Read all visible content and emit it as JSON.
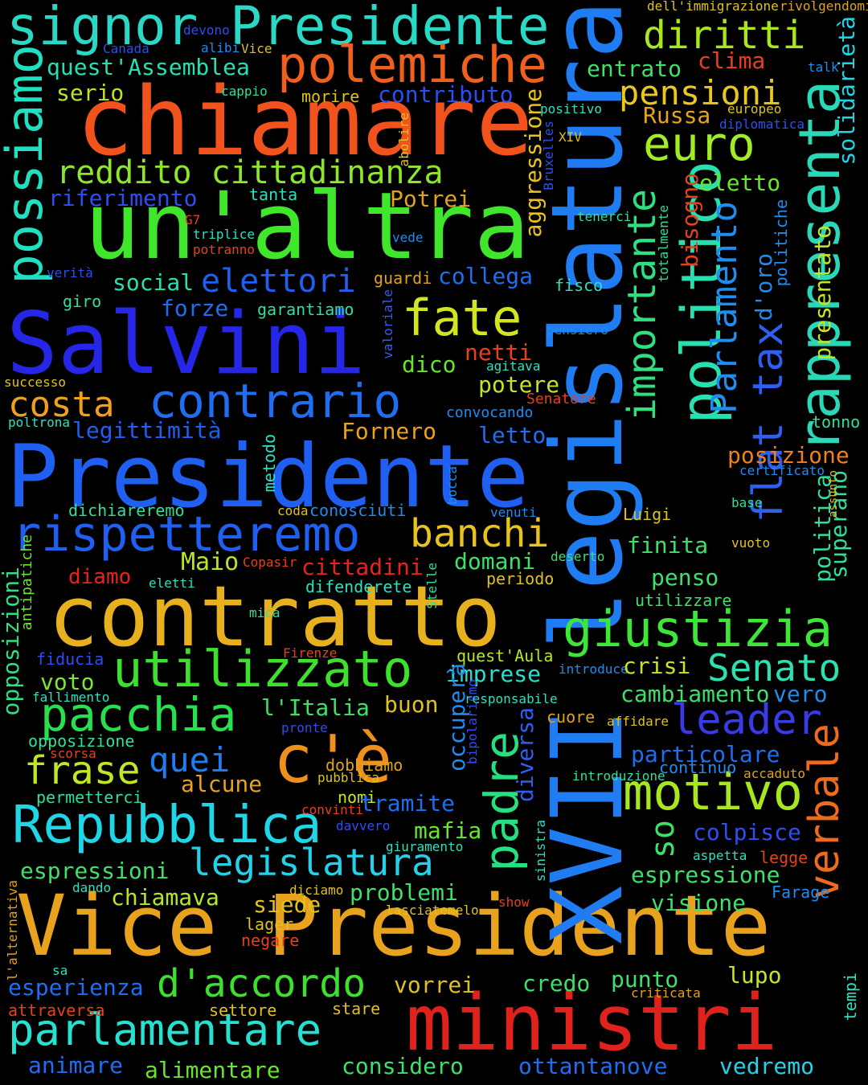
{
  "words": [
    {
      "text": "signor Presidente",
      "color": "#2ad8c6"
    },
    {
      "text": "chiamare",
      "color": "#f2521c"
    },
    {
      "text": "un'altra",
      "color": "#3fe62c"
    },
    {
      "text": "Salvini",
      "color": "#2626e6"
    },
    {
      "text": "Presidente",
      "color": "#1f5ff2"
    },
    {
      "text": "contratto",
      "color": "#e6b01f"
    },
    {
      "text": "Vice Presidente",
      "color": "#e8a21e"
    },
    {
      "text": "ministri",
      "color": "#e0221c"
    },
    {
      "text": "XVII legislatura",
      "color": "#1f7cf2"
    },
    {
      "text": "possiamo",
      "color": "#1fe0c0"
    },
    {
      "text": "polemiche",
      "color": "#f0601c"
    },
    {
      "text": "diritti",
      "color": "#a8e61f"
    },
    {
      "text": "pensioni",
      "color": "#e8c81e"
    },
    {
      "text": "euro",
      "color": "#a2ec24"
    },
    {
      "text": "rappresenta",
      "color": "#2ad8b8"
    },
    {
      "text": "politico",
      "color": "#26e0b0"
    },
    {
      "text": "flat tax",
      "color": "#2e5ef2"
    },
    {
      "text": "importante",
      "color": "#2ee080"
    },
    {
      "text": "Parlamento",
      "color": "#1f8cf0"
    },
    {
      "text": "reddito cittadinanza",
      "color": "#8ee62a"
    },
    {
      "text": "fate",
      "color": "#d2e620"
    },
    {
      "text": "costa",
      "color": "#f0a01c"
    },
    {
      "text": "contrario",
      "color": "#1f6ef2"
    },
    {
      "text": "elettori",
      "color": "#1f5ff2"
    },
    {
      "text": "rispetteremo",
      "color": "#1f5ff2"
    },
    {
      "text": "banchi",
      "color": "#e8c21e"
    },
    {
      "text": "giustizia",
      "color": "#3ee63a"
    },
    {
      "text": "utilizzato",
      "color": "#3ee02e"
    },
    {
      "text": "Senato",
      "color": "#2ee0b0"
    },
    {
      "text": "pacchia",
      "color": "#26e04e"
    },
    {
      "text": "c'è",
      "color": "#f0901c"
    },
    {
      "text": "padre",
      "color": "#26e080"
    },
    {
      "text": "motivo",
      "color": "#a8e61f"
    },
    {
      "text": "leader",
      "color": "#3a3ae6"
    },
    {
      "text": "verbale",
      "color": "#f06a1c"
    },
    {
      "text": "Repubblica",
      "color": "#1fd6e6"
    },
    {
      "text": "legislatura",
      "color": "#26d0e8"
    },
    {
      "text": "frase",
      "color": "#c2e626"
    },
    {
      "text": "quei",
      "color": "#1f7cf2"
    },
    {
      "text": "d'accordo",
      "color": "#3ee02e"
    },
    {
      "text": "parlamentare",
      "color": "#26e0d0"
    },
    {
      "text": "fiducia",
      "color": "#2e4ef2"
    },
    {
      "text": "voto",
      "color": "#80e62a"
    },
    {
      "text": "opposizioni",
      "color": "#2ee080"
    },
    {
      "text": "antipatiche",
      "color": "#66e62e"
    },
    {
      "text": "diamo",
      "color": "#e8221c"
    },
    {
      "text": "Maio",
      "color": "#b8e626"
    },
    {
      "text": "cittadini",
      "color": "#e8221c"
    },
    {
      "text": "domani",
      "color": "#3ee06a"
    },
    {
      "text": "periodo",
      "color": "#e0c21e"
    },
    {
      "text": "finita",
      "color": "#3ee06a"
    },
    {
      "text": "penso",
      "color": "#3ee06a"
    },
    {
      "text": "utilizzare",
      "color": "#3ee06a"
    },
    {
      "text": "Luigi",
      "color": "#e0c21e"
    },
    {
      "text": "vuoto",
      "color": "#e0c21e"
    },
    {
      "text": "deserto",
      "color": "#3ee06a"
    },
    {
      "text": "politica",
      "color": "#2ee09a"
    },
    {
      "text": "superano",
      "color": "#2ee09a"
    },
    {
      "text": "posizione",
      "color": "#f0801c"
    },
    {
      "text": "certificato",
      "color": "#1f8cf0"
    },
    {
      "text": "base",
      "color": "#2ee09a"
    },
    {
      "text": "assunto",
      "color": "#e0c21e"
    },
    {
      "text": "tonno",
      "color": "#2ee09a"
    },
    {
      "text": "Senatore",
      "color": "#e8401c"
    },
    {
      "text": "convocando",
      "color": "#1f8cf0"
    },
    {
      "text": "letto",
      "color": "#1f6ef2"
    },
    {
      "text": "potere",
      "color": "#c2e626"
    },
    {
      "text": "Fornero",
      "color": "#e8a21e"
    },
    {
      "text": "legittimità",
      "color": "#1f5ff2"
    },
    {
      "text": "successo",
      "color": "#e0c21e"
    },
    {
      "text": "poltrona",
      "color": "#2ee0c0"
    },
    {
      "text": "netti",
      "color": "#e8401c"
    },
    {
      "text": "agitava",
      "color": "#2ee0c0"
    },
    {
      "text": "dico",
      "color": "#66e62e"
    },
    {
      "text": "pensiero",
      "color": "#1f8cf0"
    },
    {
      "text": "fisco",
      "color": "#2ee0c0"
    },
    {
      "text": "collega",
      "color": "#1f6ef2"
    },
    {
      "text": "guardi",
      "color": "#e0a21e"
    },
    {
      "text": "valoriale",
      "color": "#2e5ef2"
    },
    {
      "text": "social",
      "color": "#26e0b0"
    },
    {
      "text": "forze",
      "color": "#1f6ef2"
    },
    {
      "text": "garantiamo",
      "color": "#2ee09a"
    },
    {
      "text": "giro",
      "color": "#2ee09a"
    },
    {
      "text": "verità",
      "color": "#2e4ef2"
    },
    {
      "text": "triplice",
      "color": "#2ee0c0"
    },
    {
      "text": "potranno",
      "color": "#e8401c"
    },
    {
      "text": "G7",
      "color": "#e8401c"
    },
    {
      "text": "tanta",
      "color": "#2ee0c0"
    },
    {
      "text": "riferimento",
      "color": "#2e4ef2"
    },
    {
      "text": "Potrei",
      "color": "#e0a21e"
    },
    {
      "text": "vede",
      "color": "#1f8cf0"
    },
    {
      "text": "aggressione",
      "color": "#e8c21e"
    },
    {
      "text": "Bruxelles",
      "color": "#2e4ef2"
    },
    {
      "text": "abolire",
      "color": "#e0c21e"
    },
    {
      "text": "XIV",
      "color": "#e0c21e"
    },
    {
      "text": "tenerci",
      "color": "#2ee09a"
    },
    {
      "text": "totalmente",
      "color": "#2ee09a"
    },
    {
      "text": "bisogno",
      "color": "#e8401c"
    },
    {
      "text": "eletto",
      "color": "#66e62e"
    },
    {
      "text": "d'oro",
      "color": "#1f8cf0"
    },
    {
      "text": "politiche",
      "color": "#1f8cf0"
    },
    {
      "text": "presentato",
      "color": "#c2e626"
    },
    {
      "text": "solidarietà",
      "color": "#1fd6e6"
    },
    {
      "text": "Russa",
      "color": "#e8a21e"
    },
    {
      "text": "diplomatica",
      "color": "#2e4ef2"
    },
    {
      "text": "europeo",
      "color": "#e0c21e"
    },
    {
      "text": "positivo",
      "color": "#2ee0c0"
    },
    {
      "text": "talk",
      "color": "#1f8cf0"
    },
    {
      "text": "clima",
      "color": "#e8401c"
    },
    {
      "text": "entrato",
      "color": "#3ee06a"
    },
    {
      "text": "contributo",
      "color": "#2e4ef2"
    },
    {
      "text": "morire",
      "color": "#e0c21e"
    },
    {
      "text": "serio",
      "color": "#b8e626"
    },
    {
      "text": "cappio",
      "color": "#2ee09a"
    },
    {
      "text": "quest'Assemblea",
      "color": "#26e0b0"
    },
    {
      "text": "Canada",
      "color": "#2e4ef2"
    },
    {
      "text": "alibi",
      "color": "#1f8cf0"
    },
    {
      "text": "Vice",
      "color": "#e0c21e"
    },
    {
      "text": "devono",
      "color": "#2e4ef2"
    },
    {
      "text": "dell'immigrazione",
      "color": "#e0c21e"
    },
    {
      "text": "rivolgendomi",
      "color": "#e0a21e"
    },
    {
      "text": "conosciuti",
      "color": "#1f8cf0"
    },
    {
      "text": "coda",
      "color": "#e0c21e"
    },
    {
      "text": "bocca",
      "color": "#1f8cf0"
    },
    {
      "text": "venuti",
      "color": "#1f8cf0"
    },
    {
      "text": "metodo",
      "color": "#2ee0c0"
    },
    {
      "text": "dichiareremo",
      "color": "#2ee09a"
    },
    {
      "text": "Copasir",
      "color": "#e8401c"
    },
    {
      "text": "eletti",
      "color": "#2ee0c0"
    },
    {
      "text": "difenderete",
      "color": "#2ee0c0"
    },
    {
      "text": "Stelle",
      "color": "#2ee09a"
    },
    {
      "text": "mica",
      "color": "#2ee09a"
    },
    {
      "text": "Firenze",
      "color": "#e8401c"
    },
    {
      "text": "quest'Aula",
      "color": "#b8e626"
    },
    {
      "text": "introduce",
      "color": "#1f8cf0"
    },
    {
      "text": "crisi",
      "color": "#c2e626"
    },
    {
      "text": "imprese",
      "color": "#26e0d0"
    },
    {
      "text": "occuperà",
      "color": "#1f8cf0"
    },
    {
      "text": "cambiamento",
      "color": "#3ee06a"
    },
    {
      "text": "vero",
      "color": "#1f8cf0"
    },
    {
      "text": "responsabile",
      "color": "#2ee0c0"
    },
    {
      "text": "bipolarismo",
      "color": "#2e4ef2"
    },
    {
      "text": "diversa",
      "color": "#2e5ef2"
    },
    {
      "text": "cuore",
      "color": "#e0a21e"
    },
    {
      "text": "affidare",
      "color": "#e0c21e"
    },
    {
      "text": "buon",
      "color": "#e0c21e"
    },
    {
      "text": "l'Italia",
      "color": "#3ee06a"
    },
    {
      "text": "fallimento",
      "color": "#2ee0c0"
    },
    {
      "text": "opposizione",
      "color": "#2ee09a"
    },
    {
      "text": "pronte",
      "color": "#2e4ef2"
    },
    {
      "text": "scorsa",
      "color": "#e8401c"
    },
    {
      "text": "dobbiamo",
      "color": "#e0a21e"
    },
    {
      "text": "pubblica",
      "color": "#e0c21e"
    },
    {
      "text": "nomi",
      "color": "#c2e626"
    },
    {
      "text": "convinti",
      "color": "#e8401c"
    },
    {
      "text": "alcune",
      "color": "#e8a21e"
    },
    {
      "text": "permetterci",
      "color": "#2ee09a"
    },
    {
      "text": "tramite",
      "color": "#1f6ef2"
    },
    {
      "text": "particolare",
      "color": "#1f6ef2"
    },
    {
      "text": "continuo",
      "color": "#1f8cf0"
    },
    {
      "text": "introduzione",
      "color": "#2ee09a"
    },
    {
      "text": "accaduto",
      "color": "#e0a21e"
    },
    {
      "text": "so",
      "color": "#3ee06a"
    },
    {
      "text": "colpisce",
      "color": "#2e4ef2"
    },
    {
      "text": "legge",
      "color": "#e8401c"
    },
    {
      "text": "aspetta",
      "color": "#2ee0c0"
    },
    {
      "text": "mafia",
      "color": "#66e62e"
    },
    {
      "text": "giuramento",
      "color": "#2ee0c0"
    },
    {
      "text": "davvero",
      "color": "#2e4ef2"
    },
    {
      "text": "sinistra",
      "color": "#2ee0c0"
    },
    {
      "text": "espressioni",
      "color": "#3ee06a"
    },
    {
      "text": "espressione",
      "color": "#3ee06a"
    },
    {
      "text": "visione",
      "color": "#3ee06a"
    },
    {
      "text": "Farage",
      "color": "#1f8cf0"
    },
    {
      "text": "problemi",
      "color": "#3ee06a"
    },
    {
      "text": "chiamava",
      "color": "#b8e626"
    },
    {
      "text": "siede",
      "color": "#e0c21e"
    },
    {
      "text": "dando",
      "color": "#2ee0c0"
    },
    {
      "text": "diciamo",
      "color": "#e0c21e"
    },
    {
      "text": "lasciatemelo",
      "color": "#e0c21e"
    },
    {
      "text": "show",
      "color": "#e8401c"
    },
    {
      "text": "l'alternativa",
      "color": "#e0a21e"
    },
    {
      "text": "lager",
      "color": "#e0c21e"
    },
    {
      "text": "negare",
      "color": "#e8401c"
    },
    {
      "text": "sa",
      "color": "#2ee0c0"
    },
    {
      "text": "esperienza",
      "color": "#1f6ef2"
    },
    {
      "text": "vorrei",
      "color": "#e0c21e"
    },
    {
      "text": "credo",
      "color": "#3ee06a"
    },
    {
      "text": "punto",
      "color": "#3ee06a"
    },
    {
      "text": "lupo",
      "color": "#c2e626"
    },
    {
      "text": "tempi",
      "color": "#2ee0c0"
    },
    {
      "text": "criticata",
      "color": "#e0a21e"
    },
    {
      "text": "attraversa",
      "color": "#e8401c"
    },
    {
      "text": "settore",
      "color": "#e0c21e"
    },
    {
      "text": "stare",
      "color": "#e0c21e"
    },
    {
      "text": "animare",
      "color": "#1f6ef2"
    },
    {
      "text": "alimentare",
      "color": "#66e62e"
    },
    {
      "text": "considero",
      "color": "#3ee06a"
    },
    {
      "text": "ottantanove",
      "color": "#1f6ef2"
    },
    {
      "text": "vedremo",
      "color": "#26d0e8"
    }
  ]
}
